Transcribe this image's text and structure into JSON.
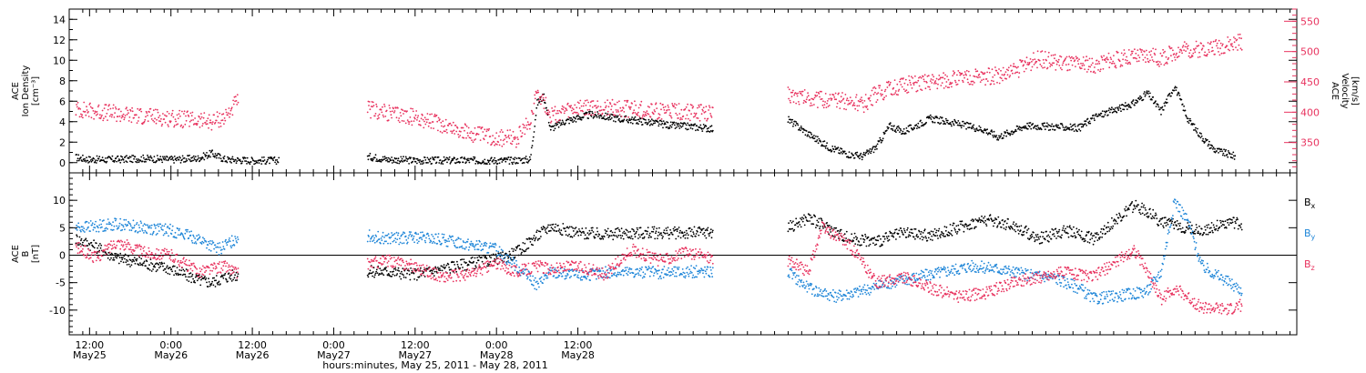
{
  "chart_data": [
    {
      "type": "scatter",
      "panel": "top",
      "ylabel_lines": [
        "ACE",
        "Ion Density",
        "[cm⁻³]"
      ],
      "y2label_lines": [
        "ACE",
        "Velocity",
        "[km/s]"
      ],
      "ylim": [
        -1,
        15
      ],
      "y2lim": [
        300,
        570
      ],
      "yticks": [
        "0",
        "2",
        "4",
        "6",
        "8",
        "10",
        "12",
        "14"
      ],
      "y2ticks": [
        "350",
        "400",
        "450",
        "500",
        "550"
      ],
      "grid": false,
      "series": [
        {
          "color": "#000000",
          "points": [
            [
              10,
              0.5
            ],
            [
              12,
              0.3
            ],
            [
              16,
              0.3
            ],
            [
              20,
              0.4
            ],
            [
              24,
              0.3
            ],
            [
              28,
              0.4
            ],
            [
              30,
              0.9
            ],
            [
              32,
              0.3
            ],
            [
              36,
              0.2
            ],
            [
              40,
              0.2
            ],
            [
              53,
              0.6
            ],
            [
              56,
              0.3
            ],
            [
              60,
              0.2
            ],
            [
              66,
              0.2
            ],
            [
              70,
              0.2
            ],
            [
              74,
              0.2
            ],
            [
              77,
              0.3
            ],
            [
              78,
              5.8
            ],
            [
              79,
              6.5
            ],
            [
              80,
              3.3
            ],
            [
              82,
              4.0
            ],
            [
              86,
              4.7
            ],
            [
              90,
              4.3
            ],
            [
              94,
              4.0
            ],
            [
              98,
              3.6
            ],
            [
              101,
              3.5
            ],
            [
              104,
              3.3
            ],
            [
              115,
              4.2
            ],
            [
              118,
              2.8
            ],
            [
              121,
              1.5
            ],
            [
              124,
              0.8
            ],
            [
              126,
              0.6
            ],
            [
              128,
              1.5
            ],
            [
              130,
              3.6
            ],
            [
              132,
              3.0
            ],
            [
              136,
              4.3
            ],
            [
              140,
              3.8
            ],
            [
              144,
              3.2
            ],
            [
              146,
              2.5
            ],
            [
              150,
              3.6
            ],
            [
              154,
              3.5
            ],
            [
              158,
              3.4
            ],
            [
              160,
              4.4
            ],
            [
              166,
              5.8
            ],
            [
              168,
              6.8
            ],
            [
              170,
              5.0
            ],
            [
              172,
              7.5
            ],
            [
              174,
              4.2
            ],
            [
              176,
              2.5
            ],
            [
              178,
              1.2
            ],
            [
              181,
              0.6
            ]
          ]
        },
        {
          "color": "#e8335f",
          "axis": "y2",
          "points": [
            [
              10,
              405
            ],
            [
              14,
              400
            ],
            [
              18,
              395
            ],
            [
              22,
              392
            ],
            [
              26,
              388
            ],
            [
              30,
              384
            ],
            [
              32,
              392
            ],
            [
              34,
              420
            ],
            [
              53,
              405
            ],
            [
              56,
              398
            ],
            [
              60,
              392
            ],
            [
              64,
              380
            ],
            [
              68,
              365
            ],
            [
              72,
              358
            ],
            [
              75,
              356
            ],
            [
              77,
              385
            ],
            [
              78,
              438
            ],
            [
              80,
              395
            ],
            [
              84,
              405
            ],
            [
              88,
              408
            ],
            [
              92,
              405
            ],
            [
              96,
              402
            ],
            [
              100,
              400
            ],
            [
              104,
              398
            ],
            [
              115,
              430
            ],
            [
              120,
              420
            ],
            [
              124,
              418
            ],
            [
              126,
              412
            ],
            [
              128,
              430
            ],
            [
              132,
              445
            ],
            [
              136,
              450
            ],
            [
              140,
              455
            ],
            [
              144,
              458
            ],
            [
              148,
              464
            ],
            [
              150,
              478
            ],
            [
              152,
              488
            ],
            [
              156,
              480
            ],
            [
              160,
              477
            ],
            [
              164,
              488
            ],
            [
              168,
              493
            ],
            [
              170,
              488
            ],
            [
              172,
              500
            ],
            [
              176,
              505
            ],
            [
              180,
              510
            ],
            [
              182,
              517
            ]
          ]
        }
      ]
    },
    {
      "type": "scatter",
      "panel": "bottom",
      "ylabel_lines": [
        "ACE",
        "B",
        "[nT]"
      ],
      "ylim": [
        -14.5,
        15
      ],
      "yticks": [
        "-10",
        "-5",
        "0",
        "5",
        "10"
      ],
      "grid": false,
      "zero_line": true,
      "series": [
        {
          "name": "B",
          "sub": "x",
          "color": "#000000",
          "points": [
            [
              10,
              3.0
            ],
            [
              13,
              1.5
            ],
            [
              16,
              -0.5
            ],
            [
              20,
              -1.5
            ],
            [
              24,
              -2.5
            ],
            [
              28,
              -4.5
            ],
            [
              30,
              -5.0
            ],
            [
              32,
              -4.0
            ],
            [
              34,
              -3.5
            ],
            [
              53,
              -3.0
            ],
            [
              56,
              -3.0
            ],
            [
              60,
              -3.5
            ],
            [
              64,
              -2.5
            ],
            [
              68,
              -1.5
            ],
            [
              72,
              -0.8
            ],
            [
              75,
              0.5
            ],
            [
              78,
              3.5
            ],
            [
              80,
              5.3
            ],
            [
              84,
              4.0
            ],
            [
              88,
              3.8
            ],
            [
              92,
              4.0
            ],
            [
              96,
              4.1
            ],
            [
              100,
              4.0
            ],
            [
              104,
              4.2
            ],
            [
              115,
              5.0
            ],
            [
              118,
              6.8
            ],
            [
              120,
              5.5
            ],
            [
              124,
              3.0
            ],
            [
              128,
              2.5
            ],
            [
              132,
              4.0
            ],
            [
              136,
              3.5
            ],
            [
              140,
              5.0
            ],
            [
              144,
              6.5
            ],
            [
              148,
              5.5
            ],
            [
              152,
              3.0
            ],
            [
              156,
              4.5
            ],
            [
              160,
              3.0
            ],
            [
              166,
              9.0
            ],
            [
              168,
              8.0
            ],
            [
              170,
              6.0
            ],
            [
              172,
              5.5
            ],
            [
              176,
              4.5
            ],
            [
              180,
              6.0
            ],
            [
              182,
              5.5
            ]
          ]
        },
        {
          "name": "B",
          "sub": "y",
          "color": "#1f86d8",
          "points": [
            [
              10,
              5.0
            ],
            [
              13,
              5.3
            ],
            [
              16,
              5.7
            ],
            [
              20,
              5.0
            ],
            [
              24,
              4.5
            ],
            [
              28,
              3.0
            ],
            [
              31,
              1.0
            ],
            [
              33,
              2.5
            ],
            [
              34,
              3.5
            ],
            [
              53,
              3.5
            ],
            [
              56,
              3.0
            ],
            [
              60,
              3.2
            ],
            [
              64,
              2.8
            ],
            [
              68,
              2.0
            ],
            [
              72,
              1.0
            ],
            [
              75,
              -2.0
            ],
            [
              78,
              -5.5
            ],
            [
              80,
              -3.0
            ],
            [
              84,
              -3.8
            ],
            [
              88,
              -3.2
            ],
            [
              92,
              -3.0
            ],
            [
              96,
              -3.2
            ],
            [
              100,
              -3.0
            ],
            [
              104,
              -3.0
            ],
            [
              115,
              -3.0
            ],
            [
              118,
              -6.0
            ],
            [
              122,
              -7.5
            ],
            [
              126,
              -6.5
            ],
            [
              130,
              -5.0
            ],
            [
              134,
              -4.0
            ],
            [
              138,
              -3.0
            ],
            [
              142,
              -2.0
            ],
            [
              146,
              -2.5
            ],
            [
              150,
              -3.5
            ],
            [
              154,
              -4.0
            ],
            [
              158,
              -6.0
            ],
            [
              160,
              -8.0
            ],
            [
              166,
              -7.0
            ],
            [
              168,
              -6.5
            ],
            [
              170,
              -3.0
            ],
            [
              172,
              10.0
            ],
            [
              174,
              6.0
            ],
            [
              176,
              -2.0
            ],
            [
              180,
              -5.0
            ],
            [
              182,
              -6.5
            ]
          ]
        },
        {
          "name": "B",
          "sub": "z",
          "color": "#e8335f",
          "points": [
            [
              10,
              1.5
            ],
            [
              13,
              -0.5
            ],
            [
              16,
              2.5
            ],
            [
              20,
              0.5
            ],
            [
              24,
              0.0
            ],
            [
              28,
              -3.0
            ],
            [
              30,
              -2.5
            ],
            [
              32,
              -2.0
            ],
            [
              34,
              -3.5
            ],
            [
              53,
              -1.5
            ],
            [
              56,
              -1.0
            ],
            [
              60,
              -2.0
            ],
            [
              64,
              -4.0
            ],
            [
              68,
              -3.5
            ],
            [
              72,
              -1.5
            ],
            [
              75,
              -3.0
            ],
            [
              78,
              -2.0
            ],
            [
              80,
              -2.5
            ],
            [
              84,
              -2.0
            ],
            [
              88,
              -3.5
            ],
            [
              92,
              1.0
            ],
            [
              96,
              -1.0
            ],
            [
              100,
              0.5
            ],
            [
              104,
              -0.5
            ],
            [
              115,
              -1.0
            ],
            [
              118,
              -3.0
            ],
            [
              120,
              5.0
            ],
            [
              124,
              2.0
            ],
            [
              128,
              -5.0
            ],
            [
              132,
              -4.0
            ],
            [
              136,
              -6.0
            ],
            [
              140,
              -7.5
            ],
            [
              144,
              -7.0
            ],
            [
              148,
              -5.0
            ],
            [
              152,
              -4.0
            ],
            [
              156,
              -3.0
            ],
            [
              160,
              -4.0
            ],
            [
              166,
              1.0
            ],
            [
              168,
              -3.0
            ],
            [
              170,
              -8.0
            ],
            [
              172,
              -6.0
            ],
            [
              176,
              -9.5
            ],
            [
              180,
              -10.0
            ],
            [
              182,
              -9.0
            ]
          ]
        }
      ]
    }
  ],
  "x_axis": {
    "xlim": [
      9,
      190
    ],
    "xlabel": "hours:minutes, May 25, 2011 - May 28, 2011",
    "ticks": [
      {
        "h": 12,
        "time": "12:00",
        "date": "May25"
      },
      {
        "h": 24,
        "time": "0:00",
        "date": "May26"
      },
      {
        "h": 36,
        "time": "12:00",
        "date": "May26"
      },
      {
        "h": 48,
        "time": "0:00",
        "date": "May27"
      },
      {
        "h": 60,
        "time": "12:00",
        "date": "May27"
      },
      {
        "h": 72,
        "time": "0:00",
        "date": "May28"
      },
      {
        "h": 84,
        "time": "12:00",
        "date": "May28"
      }
    ]
  }
}
